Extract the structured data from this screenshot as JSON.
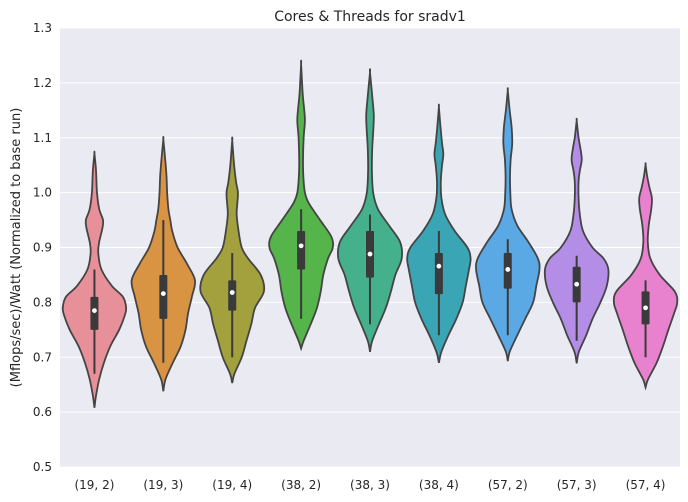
{
  "chart_data": {
    "type": "violin",
    "title": "Cores & Threads for sradv1",
    "xlabel": "",
    "ylabel": "(Mflops/sec)/Watt (Normalized to base run)",
    "ylim": [
      0.5,
      1.3
    ],
    "yticks": [
      "0.5",
      "0.6",
      "0.7",
      "0.8",
      "0.9",
      "1.0",
      "1.1",
      "1.2",
      "1.3"
    ],
    "grid": true,
    "categories": [
      "(19, 2)",
      "(19, 3)",
      "(19, 4)",
      "(38, 2)",
      "(38, 3)",
      "(38, 4)",
      "(57, 2)",
      "(57, 3)",
      "(57, 4)"
    ],
    "colors": [
      "#e8909a",
      "#d99443",
      "#a3a03e",
      "#55b44a",
      "#45b08c",
      "#3aa6b5",
      "#5aa9e5",
      "#b48de6",
      "#e882cf"
    ],
    "stats": [
      {
        "median": 0.785,
        "q1": 0.75,
        "q3": 0.81,
        "whisker_low": 0.67,
        "whisker_high": 0.86
      },
      {
        "median": 0.816,
        "q1": 0.77,
        "q3": 0.85,
        "whisker_low": 0.69,
        "whisker_high": 0.95
      },
      {
        "median": 0.818,
        "q1": 0.785,
        "q3": 0.84,
        "whisker_low": 0.7,
        "whisker_high": 0.89
      },
      {
        "median": 0.903,
        "q1": 0.86,
        "q3": 0.93,
        "whisker_low": 0.77,
        "whisker_high": 0.97
      },
      {
        "median": 0.888,
        "q1": 0.845,
        "q3": 0.93,
        "whisker_low": 0.76,
        "whisker_high": 0.96
      },
      {
        "median": 0.866,
        "q1": 0.815,
        "q3": 0.89,
        "whisker_low": 0.74,
        "whisker_high": 0.93
      },
      {
        "median": 0.86,
        "q1": 0.825,
        "q3": 0.89,
        "whisker_low": 0.74,
        "whisker_high": 0.915
      },
      {
        "median": 0.833,
        "q1": 0.8,
        "q3": 0.865,
        "whisker_low": 0.73,
        "whisker_high": 0.885
      },
      {
        "median": 0.79,
        "q1": 0.76,
        "q3": 0.82,
        "whisker_low": 0.7,
        "whisker_high": 0.84
      }
    ],
    "density_profiles": [
      [
        [
          0.608,
          0
        ],
        [
          0.63,
          0.05
        ],
        [
          0.66,
          0.15
        ],
        [
          0.69,
          0.3
        ],
        [
          0.72,
          0.5
        ],
        [
          0.75,
          0.78
        ],
        [
          0.775,
          0.95
        ],
        [
          0.79,
          1.0
        ],
        [
          0.81,
          0.9
        ],
        [
          0.83,
          0.55
        ],
        [
          0.86,
          0.22
        ],
        [
          0.89,
          0.12
        ],
        [
          0.91,
          0.15
        ],
        [
          0.935,
          0.25
        ],
        [
          0.95,
          0.27
        ],
        [
          0.97,
          0.15
        ],
        [
          1.0,
          0.08
        ],
        [
          1.04,
          0.05
        ],
        [
          1.071,
          0
        ]
      ],
      [
        [
          0.638,
          0
        ],
        [
          0.66,
          0.07
        ],
        [
          0.69,
          0.3
        ],
        [
          0.72,
          0.55
        ],
        [
          0.75,
          0.7
        ],
        [
          0.78,
          0.78
        ],
        [
          0.81,
          0.9
        ],
        [
          0.84,
          1.0
        ],
        [
          0.87,
          0.75
        ],
        [
          0.9,
          0.45
        ],
        [
          0.93,
          0.28
        ],
        [
          0.95,
          0.22
        ],
        [
          0.97,
          0.16
        ],
        [
          1.0,
          0.12
        ],
        [
          1.03,
          0.1
        ],
        [
          1.06,
          0.06
        ],
        [
          1.097,
          0
        ]
      ],
      [
        [
          0.653,
          0
        ],
        [
          0.67,
          0.07
        ],
        [
          0.7,
          0.3
        ],
        [
          0.73,
          0.45
        ],
        [
          0.76,
          0.6
        ],
        [
          0.79,
          0.72
        ],
        [
          0.82,
          1.0
        ],
        [
          0.85,
          0.9
        ],
        [
          0.88,
          0.5
        ],
        [
          0.9,
          0.3
        ],
        [
          0.93,
          0.2
        ],
        [
          0.96,
          0.14
        ],
        [
          0.98,
          0.16
        ],
        [
          1.0,
          0.18
        ],
        [
          1.02,
          0.12
        ],
        [
          1.05,
          0.06
        ],
        [
          1.095,
          0
        ]
      ],
      [
        [
          0.716,
          0
        ],
        [
          0.73,
          0.08
        ],
        [
          0.76,
          0.3
        ],
        [
          0.79,
          0.5
        ],
        [
          0.82,
          0.62
        ],
        [
          0.85,
          0.7
        ],
        [
          0.88,
          0.85
        ],
        [
          0.9,
          1.0
        ],
        [
          0.92,
          0.95
        ],
        [
          0.95,
          0.6
        ],
        [
          0.98,
          0.25
        ],
        [
          1.0,
          0.12
        ],
        [
          1.03,
          0.07
        ],
        [
          1.06,
          0.06
        ],
        [
          1.1,
          0.08
        ],
        [
          1.13,
          0.12
        ],
        [
          1.15,
          0.1
        ],
        [
          1.18,
          0.05
        ],
        [
          1.234,
          0
        ]
      ],
      [
        [
          0.71,
          0
        ],
        [
          0.73,
          0.07
        ],
        [
          0.76,
          0.28
        ],
        [
          0.79,
          0.5
        ],
        [
          0.82,
          0.66
        ],
        [
          0.85,
          0.8
        ],
        [
          0.88,
          1.0
        ],
        [
          0.91,
          0.95
        ],
        [
          0.94,
          0.6
        ],
        [
          0.97,
          0.25
        ],
        [
          1.0,
          0.1
        ],
        [
          1.04,
          0.06
        ],
        [
          1.08,
          0.07
        ],
        [
          1.11,
          0.1
        ],
        [
          1.14,
          0.12
        ],
        [
          1.17,
          0.08
        ],
        [
          1.219,
          0
        ]
      ],
      [
        [
          0.69,
          0
        ],
        [
          0.71,
          0.08
        ],
        [
          0.74,
          0.3
        ],
        [
          0.77,
          0.55
        ],
        [
          0.8,
          0.75
        ],
        [
          0.83,
          0.85
        ],
        [
          0.86,
          0.95
        ],
        [
          0.88,
          1.0
        ],
        [
          0.9,
          0.9
        ],
        [
          0.93,
          0.5
        ],
        [
          0.96,
          0.2
        ],
        [
          0.99,
          0.08
        ],
        [
          1.02,
          0.06
        ],
        [
          1.05,
          0.1
        ],
        [
          1.07,
          0.14
        ],
        [
          1.09,
          0.1
        ],
        [
          1.12,
          0.05
        ],
        [
          1.156,
          0
        ]
      ],
      [
        [
          0.693,
          0
        ],
        [
          0.71,
          0.06
        ],
        [
          0.74,
          0.3
        ],
        [
          0.77,
          0.55
        ],
        [
          0.8,
          0.8
        ],
        [
          0.83,
          0.9
        ],
        [
          0.86,
          1.0
        ],
        [
          0.88,
          0.95
        ],
        [
          0.91,
          0.65
        ],
        [
          0.94,
          0.3
        ],
        [
          0.97,
          0.12
        ],
        [
          1.0,
          0.08
        ],
        [
          1.03,
          0.07
        ],
        [
          1.06,
          0.09
        ],
        [
          1.09,
          0.14
        ],
        [
          1.12,
          0.12
        ],
        [
          1.15,
          0.06
        ],
        [
          1.186,
          0
        ]
      ],
      [
        [
          0.689,
          0
        ],
        [
          0.71,
          0.07
        ],
        [
          0.74,
          0.3
        ],
        [
          0.77,
          0.5
        ],
        [
          0.8,
          0.75
        ],
        [
          0.83,
          0.95
        ],
        [
          0.86,
          1.0
        ],
        [
          0.88,
          0.85
        ],
        [
          0.9,
          0.5
        ],
        [
          0.93,
          0.2
        ],
        [
          0.96,
          0.1
        ],
        [
          0.99,
          0.06
        ],
        [
          1.02,
          0.06
        ],
        [
          1.04,
          0.1
        ],
        [
          1.06,
          0.16
        ],
        [
          1.08,
          0.12
        ],
        [
          1.1,
          0.06
        ],
        [
          1.131,
          0
        ]
      ],
      [
        [
          0.645,
          0
        ],
        [
          0.66,
          0.08
        ],
        [
          0.69,
          0.35
        ],
        [
          0.72,
          0.55
        ],
        [
          0.75,
          0.72
        ],
        [
          0.78,
          0.9
        ],
        [
          0.8,
          1.0
        ],
        [
          0.82,
          0.92
        ],
        [
          0.85,
          0.45
        ],
        [
          0.88,
          0.15
        ],
        [
          0.91,
          0.07
        ],
        [
          0.94,
          0.1
        ],
        [
          0.97,
          0.18
        ],
        [
          0.99,
          0.2
        ],
        [
          1.01,
          0.12
        ],
        [
          1.03,
          0.05
        ],
        [
          1.051,
          0
        ]
      ]
    ]
  }
}
